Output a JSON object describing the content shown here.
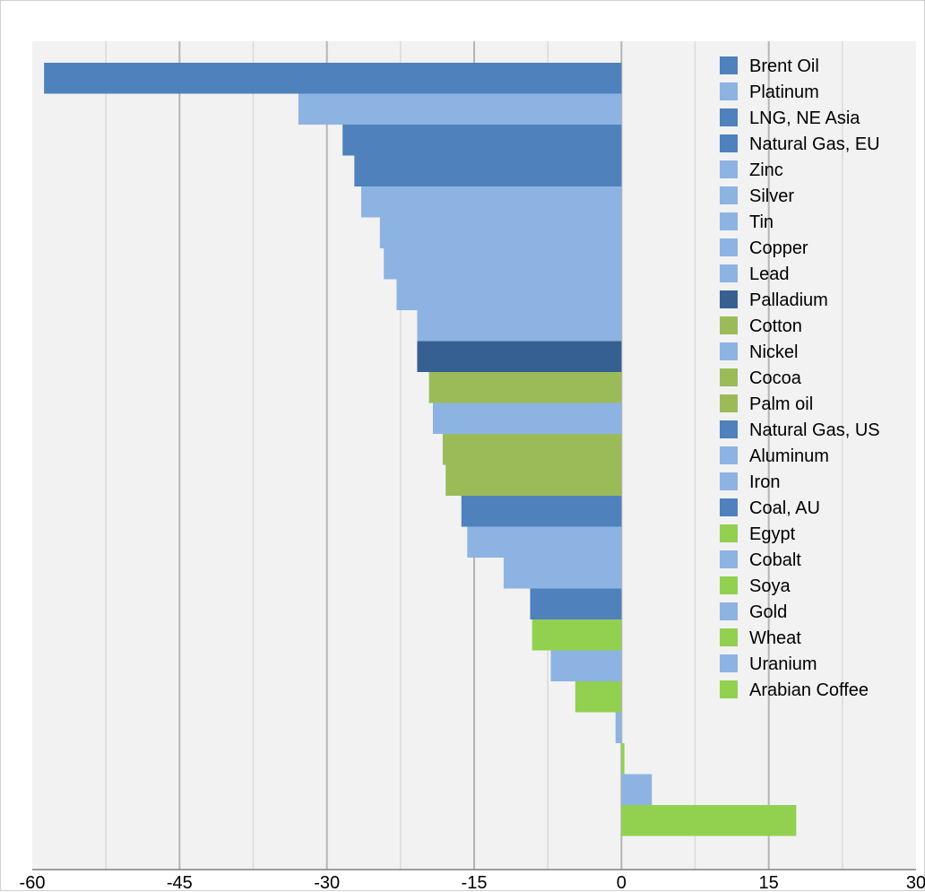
{
  "chart_data": {
    "type": "bar",
    "orientation": "horizontal",
    "title": "",
    "xlabel": "",
    "ylabel": "",
    "xlim": [
      -60,
      30
    ],
    "x_ticks": [
      -60,
      -45,
      -30,
      -15,
      0,
      15,
      30
    ],
    "x_tick_labels": [
      "-60",
      "-45",
      "-30",
      "-15",
      "0",
      "15",
      "30"
    ],
    "grid": "vertical major and minor gridlines",
    "legend_position": "top-right",
    "background_color": "#f2f2f2",
    "category_colors": {
      "energy": "#4f81bd",
      "metals": "#8db3e2",
      "precious_dark": "#376092",
      "agri_olive": "#9bbb59",
      "agri_lime": "#92d050"
    },
    "categories": [
      "Brent Oil",
      "Platinum",
      "LNG, NE Asia",
      "Natural Gas, EU",
      "Zinc",
      "Silver",
      "Tin",
      "Copper",
      "Lead",
      "Palladium",
      "Cotton",
      "Nickel",
      "Cocoa",
      "Palm oil",
      "Natural Gas, US",
      "Aluminum",
      "Iron",
      "Coal, AU",
      "Egypt",
      "Cobalt",
      "Soya",
      "Gold",
      "Wheat",
      "Uranium",
      "Arabian Coffee"
    ],
    "values": [
      -58.8,
      -32.9,
      -28.4,
      -27.2,
      -26.5,
      -24.6,
      -24.2,
      -22.9,
      -20.8,
      -20.8,
      -19.6,
      -19.2,
      -18.2,
      -17.9,
      -16.3,
      -15.7,
      -12.0,
      -9.3,
      -9.1,
      -7.2,
      -4.7,
      -0.6,
      0.3,
      3.1,
      17.8
    ],
    "bar_colors": [
      "#4f81bd",
      "#8db3e2",
      "#4f81bd",
      "#4f81bd",
      "#8db3e2",
      "#8db3e2",
      "#8db3e2",
      "#8db3e2",
      "#8db3e2",
      "#376092",
      "#9bbb59",
      "#8db3e2",
      "#9bbb59",
      "#9bbb59",
      "#4f81bd",
      "#8db3e2",
      "#8db3e2",
      "#4f81bd",
      "#92d050",
      "#8db3e2",
      "#92d050",
      "#8db3e2",
      "#92d050",
      "#8db3e2",
      "#92d050"
    ],
    "legend": {
      "entries": [
        {
          "label": "Brent Oil",
          "color": "#4f81bd"
        },
        {
          "label": "Platinum",
          "color": "#8db3e2"
        },
        {
          "label": "LNG, NE Asia",
          "color": "#4f81bd"
        },
        {
          "label": "Natural Gas, EU",
          "color": "#4f81bd"
        },
        {
          "label": "Zinc",
          "color": "#8db3e2"
        },
        {
          "label": "Silver",
          "color": "#8db3e2"
        },
        {
          "label": "Tin",
          "color": "#8db3e2"
        },
        {
          "label": "Copper",
          "color": "#8db3e2"
        },
        {
          "label": "Lead",
          "color": "#8db3e2"
        },
        {
          "label": "Palladium",
          "color": "#376092"
        },
        {
          "label": "Cotton",
          "color": "#9bbb59"
        },
        {
          "label": "Nickel",
          "color": "#8db3e2"
        },
        {
          "label": "Cocoa",
          "color": "#9bbb59"
        },
        {
          "label": "Palm oil",
          "color": "#9bbb59"
        },
        {
          "label": "Natural Gas, US",
          "color": "#4f81bd"
        },
        {
          "label": "Aluminum",
          "color": "#8db3e2"
        },
        {
          "label": "Iron",
          "color": "#8db3e2"
        },
        {
          "label": "Coal, AU",
          "color": "#4f81bd"
        },
        {
          "label": "Egypt",
          "color": "#92d050"
        },
        {
          "label": "Cobalt",
          "color": "#8db3e2"
        },
        {
          "label": "Soya",
          "color": "#92d050"
        },
        {
          "label": "Gold",
          "color": "#8db3e2"
        },
        {
          "label": "Wheat",
          "color": "#92d050"
        },
        {
          "label": "Uranium",
          "color": "#8db3e2"
        },
        {
          "label": "Arabian Coffee",
          "color": "#92d050"
        }
      ]
    }
  }
}
